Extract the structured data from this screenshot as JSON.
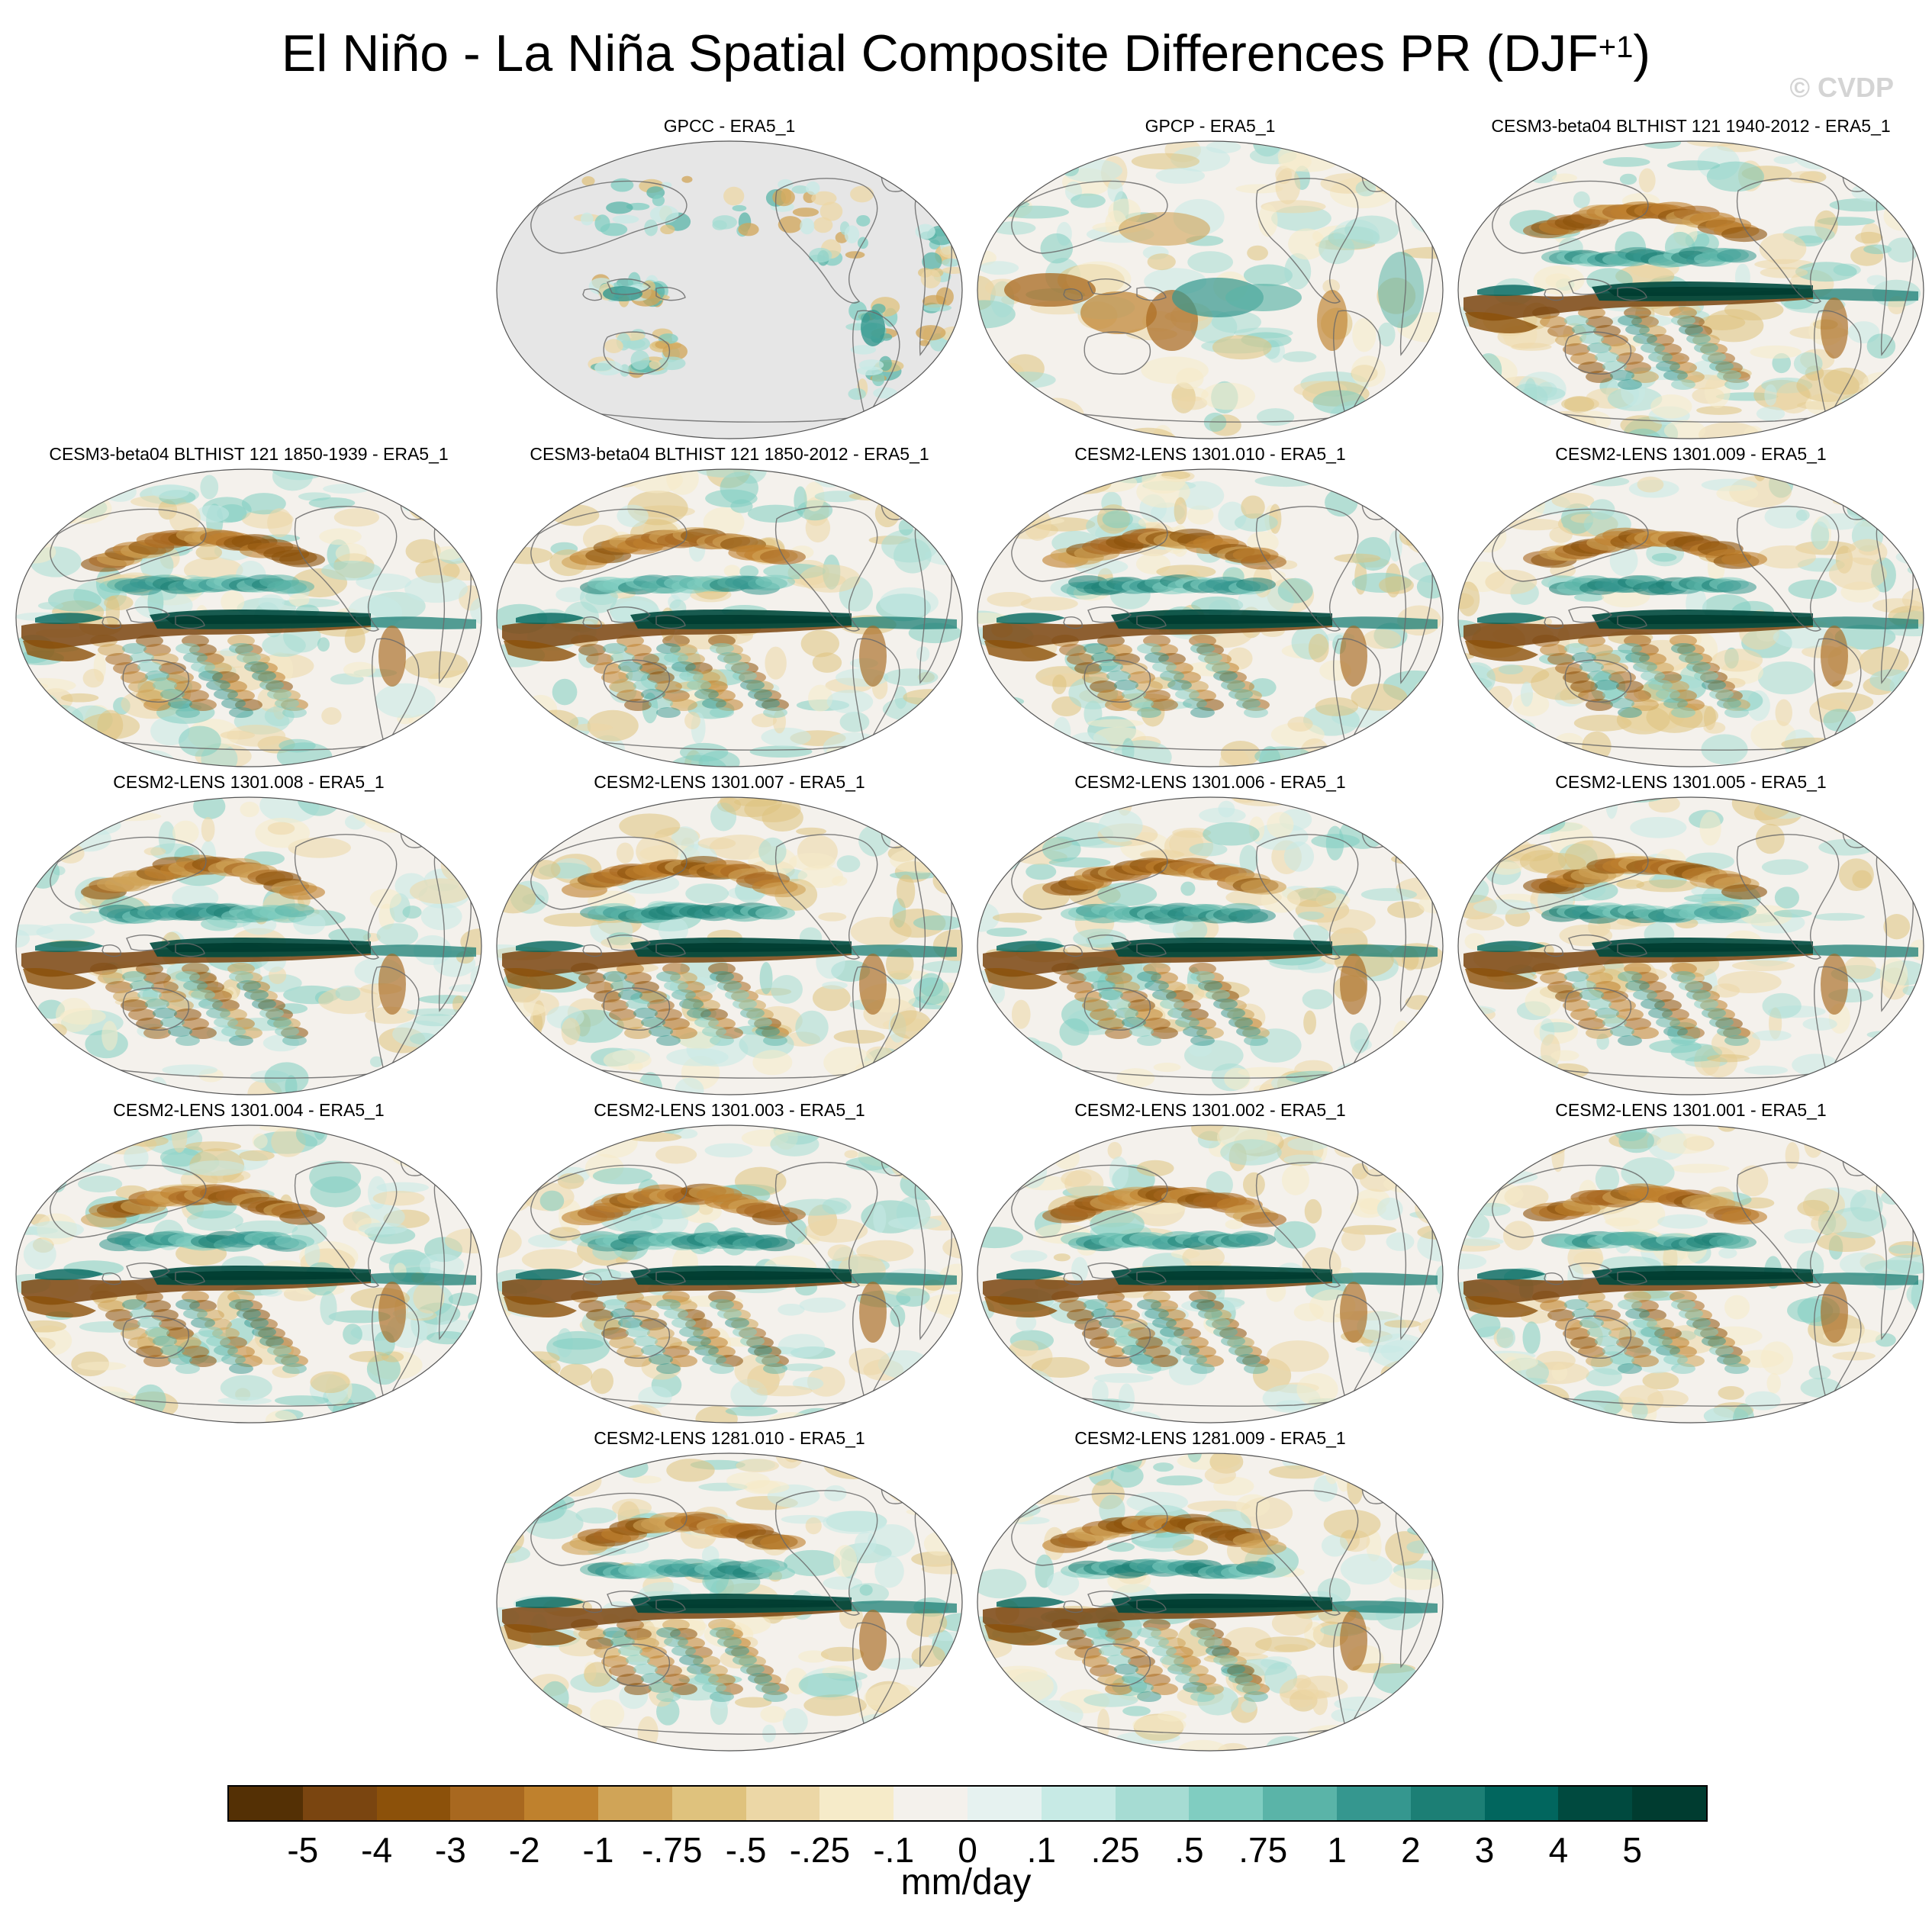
{
  "title": {
    "main": "El Niño - La Niña Spatial Composite Differences PR (DJF",
    "superscript": "+1",
    "close": ")"
  },
  "watermark": "© CVDP",
  "panels": [
    {
      "title": "GPCC - ERA5_1",
      "style": "gpcc"
    },
    {
      "title": "GPCP - ERA5_1",
      "style": "gpcp"
    },
    {
      "title": "CESM3-beta04 BLTHIST 121 1940-2012 - ERA5_1",
      "style": "model"
    },
    {
      "title": "CESM3-beta04 BLTHIST 121 1850-1939 - ERA5_1",
      "style": "model"
    },
    {
      "title": "CESM3-beta04 BLTHIST 121 1850-2012 - ERA5_1",
      "style": "model"
    },
    {
      "title": "CESM2-LENS 1301.010 - ERA5_1",
      "style": "model"
    },
    {
      "title": "CESM2-LENS 1301.009 - ERA5_1",
      "style": "model"
    },
    {
      "title": "CESM2-LENS 1301.008 - ERA5_1",
      "style": "model"
    },
    {
      "title": "CESM2-LENS 1301.007 - ERA5_1",
      "style": "model"
    },
    {
      "title": "CESM2-LENS 1301.006 - ERA5_1",
      "style": "model"
    },
    {
      "title": "CESM2-LENS 1301.005 - ERA5_1",
      "style": "model"
    },
    {
      "title": "CESM2-LENS 1301.004 - ERA5_1",
      "style": "model"
    },
    {
      "title": "CESM2-LENS 1301.003 - ERA5_1",
      "style": "model"
    },
    {
      "title": "CESM2-LENS 1301.002 - ERA5_1",
      "style": "model"
    },
    {
      "title": "CESM2-LENS 1301.001 - ERA5_1",
      "style": "model"
    },
    {
      "title": "CESM2-LENS 1281.010 - ERA5_1",
      "style": "model"
    },
    {
      "title": "CESM2-LENS 1281.009 - ERA5_1",
      "style": "model"
    }
  ],
  "colorbar": {
    "units": "mm/day",
    "labels": [
      "-5",
      "-4",
      "-3",
      "-2",
      "-1",
      "-.75",
      "-.5",
      "-.25",
      "-.1",
      "0",
      ".1",
      ".25",
      ".5",
      ".75",
      "1",
      "2",
      "3",
      "4",
      "5"
    ],
    "colors": [
      "#543005",
      "#7a4510",
      "#8c510a",
      "#a8681f",
      "#bf812d",
      "#d0a457",
      "#dfc27d",
      "#ecd7a6",
      "#f6ebc9",
      "#f4f1ec",
      "#e6f2f0",
      "#c7eae5",
      "#a6dcd3",
      "#80cdc1",
      "#5ab4a8",
      "#35978f",
      "#1c7f75",
      "#01665e",
      "#004a3f",
      "#003c30"
    ],
    "land_mask_color": "#e6e6e6"
  }
}
